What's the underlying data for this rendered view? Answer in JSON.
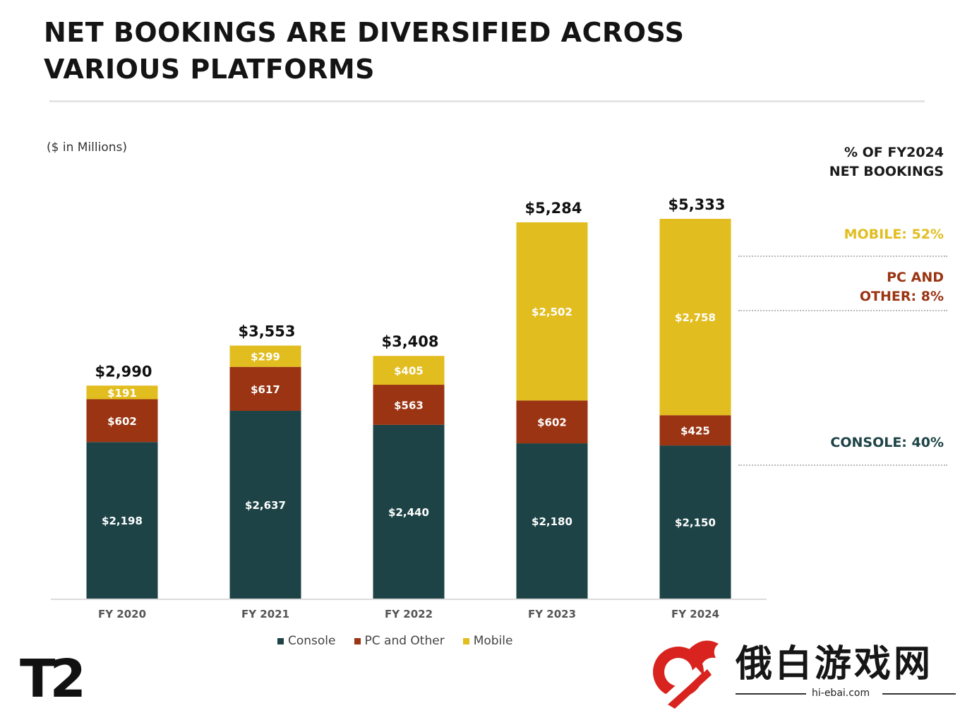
{
  "title": "NET BOOKINGS ARE DIVERSIFIED ACROSS VARIOUS PLATFORMS",
  "units_note": "($ in Millions)",
  "share_header": [
    "% OF FY2024",
    "NET BOOKINGS"
  ],
  "share_labels": [
    {
      "text_lines": [
        "MOBILE: 52%"
      ],
      "color": "#e2bd1f"
    },
    {
      "text_lines": [
        "PC AND",
        "OTHER: 8%"
      ],
      "color": "#9a3412"
    },
    {
      "text_lines": [
        "CONSOLE: 40%"
      ],
      "color": "#1d4346"
    }
  ],
  "colors": {
    "console": "#1d4346",
    "pc": "#9a3412",
    "mobile": "#e2bd1f"
  },
  "chart_data": {
    "type": "bar",
    "stacked": true,
    "categories": [
      "FY 2020",
      "FY 2021",
      "FY 2022",
      "FY 2023",
      "FY 2024"
    ],
    "series": [
      {
        "name": "Console",
        "values": [
          2198,
          2637,
          2440,
          2180,
          2150
        ],
        "labels": [
          "$2,198",
          "$2,637",
          "$2,440",
          "$2,180",
          "$2,150"
        ]
      },
      {
        "name": "PC and Other",
        "values": [
          602,
          617,
          563,
          602,
          425
        ],
        "labels": [
          "$602",
          "$617",
          "$563",
          "$602",
          "$425"
        ]
      },
      {
        "name": "Mobile",
        "values": [
          191,
          299,
          405,
          2502,
          2758
        ],
        "labels": [
          "$191",
          "$299",
          "$405",
          "$2,502",
          "$2,758"
        ]
      }
    ],
    "totals": [
      2990,
      3553,
      3408,
      5284,
      5333
    ],
    "total_labels": [
      "$2,990",
      "$3,553",
      "$3,408",
      "$5,284",
      "$5,333"
    ],
    "ylim": [
      0,
      5333
    ],
    "grid": false,
    "legend_position": "bottom-center"
  },
  "legend": [
    "Console",
    "PC and Other",
    "Mobile"
  ],
  "logo_text": "T2",
  "watermark": {
    "text": "俄白游戏网",
    "url": "hi-ebai.com"
  }
}
